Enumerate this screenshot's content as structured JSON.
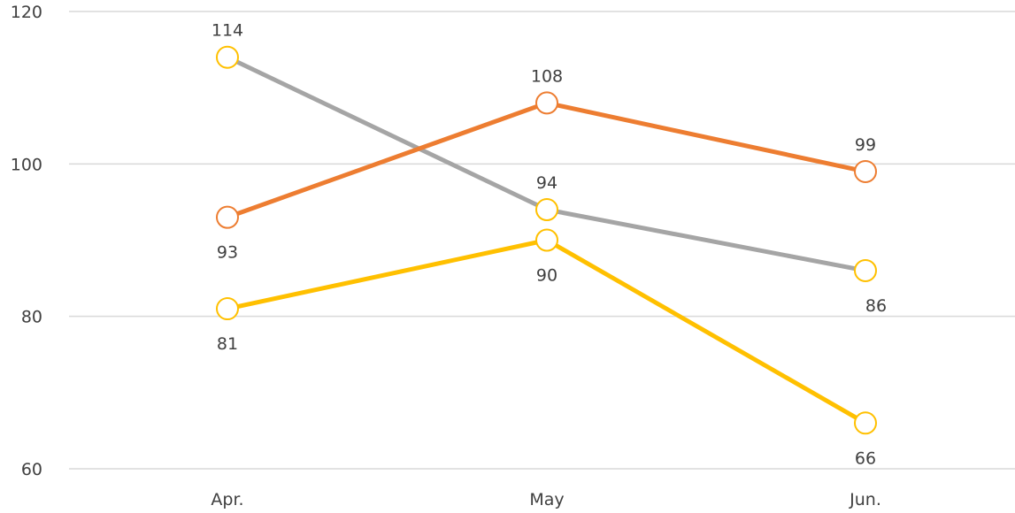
{
  "chart_data": {
    "type": "line",
    "categories": [
      "Apr.",
      "May",
      "Jun."
    ],
    "ylim": [
      60,
      120
    ],
    "yticks": [
      60,
      80,
      100,
      120
    ],
    "grid": true,
    "legend": "none",
    "series": [
      {
        "values": [
          114,
          94,
          86
        ],
        "color": "#a5a5a5",
        "marker_color": "#ffc000",
        "label_positions": [
          "above",
          "above",
          "below"
        ]
      },
      {
        "values": [
          93,
          108,
          99
        ],
        "color": "#ed7d31",
        "marker_color": "#ed7d31",
        "label_positions": [
          "below",
          "above",
          "above"
        ]
      },
      {
        "values": [
          81,
          90,
          66
        ],
        "color": "#ffc000",
        "marker_color": "#ffc000",
        "label_positions": [
          "below",
          "below",
          "below"
        ]
      }
    ]
  }
}
